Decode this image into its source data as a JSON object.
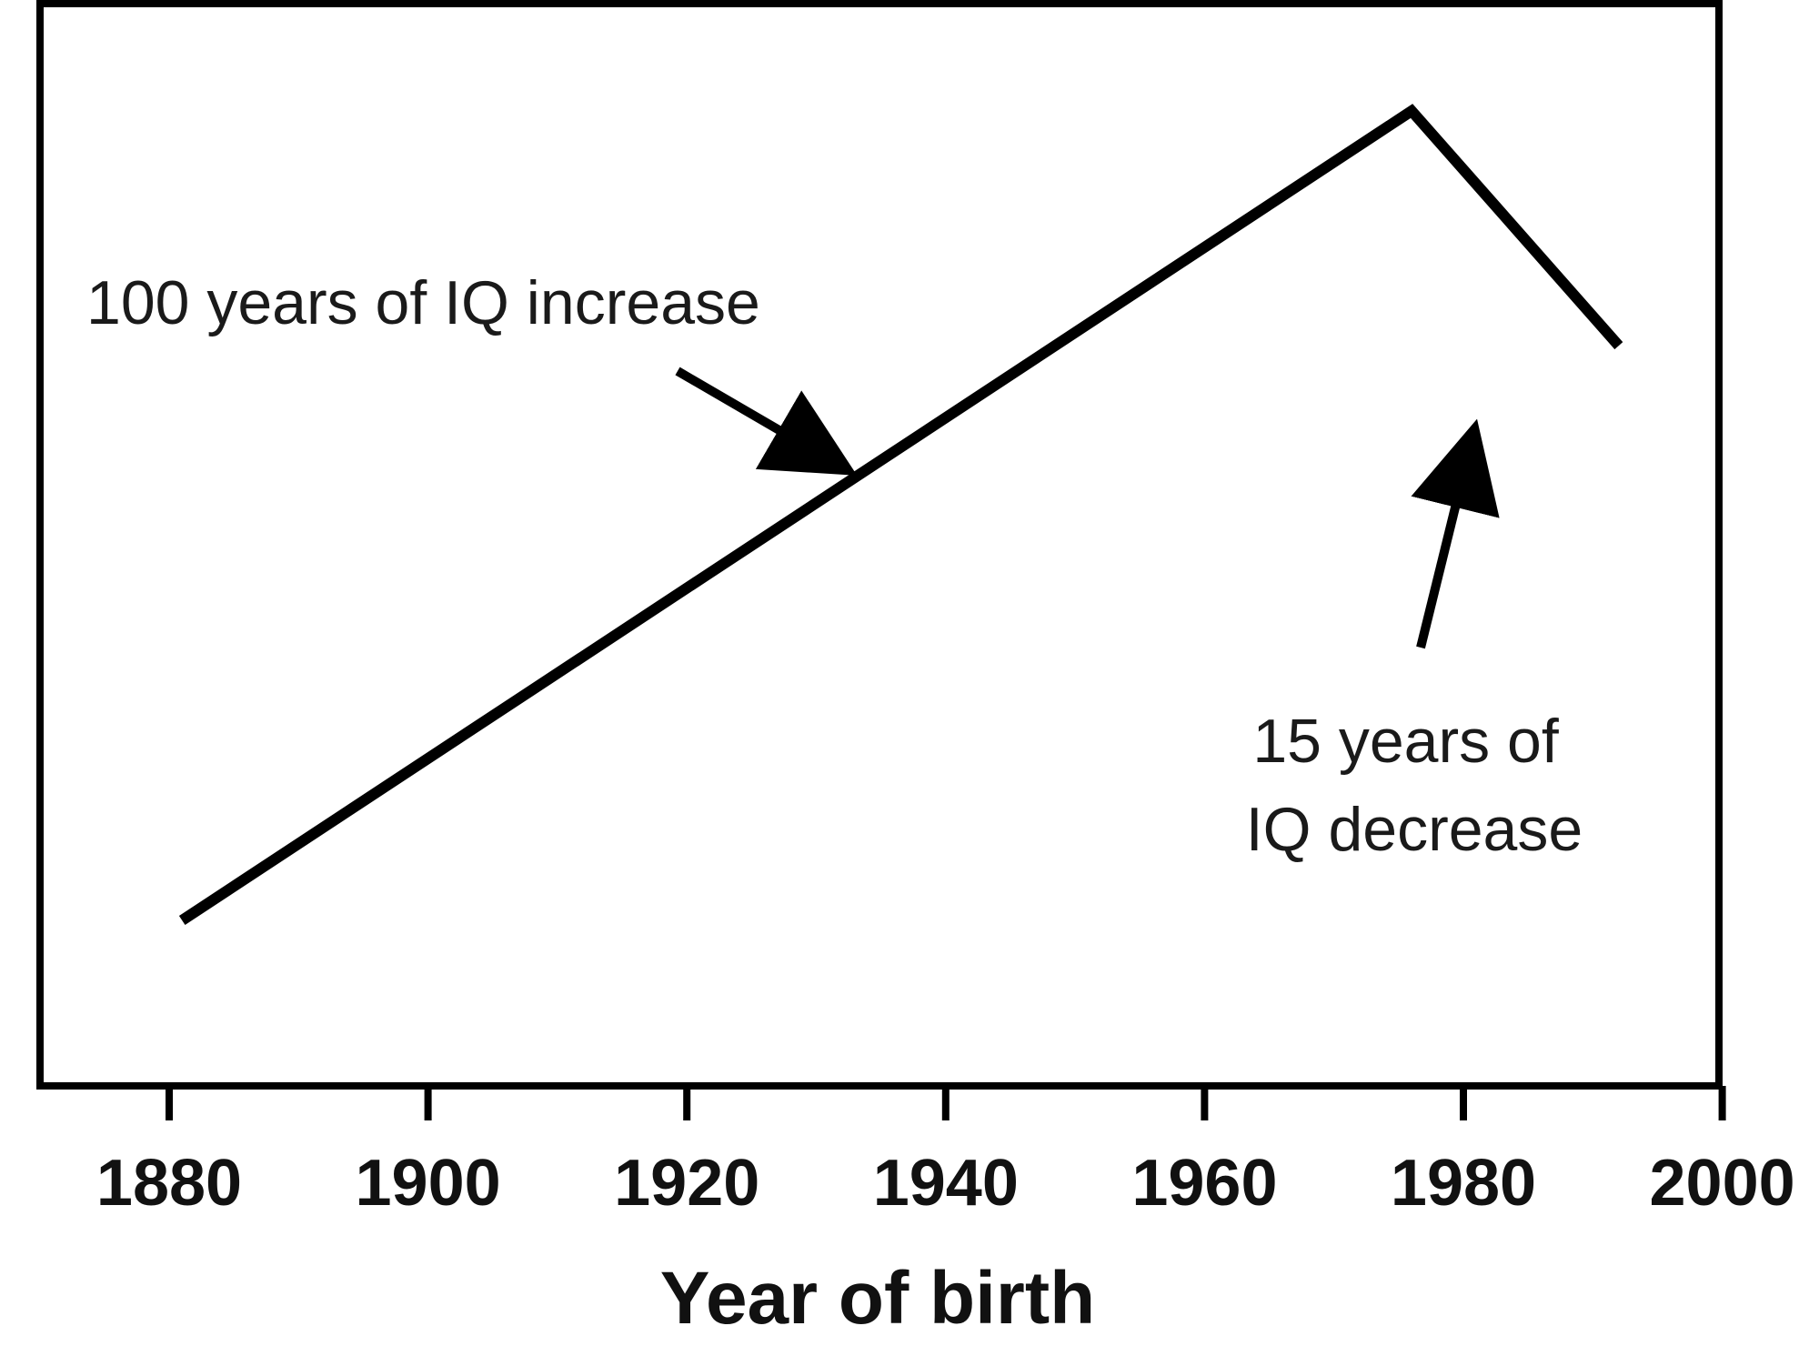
{
  "chart_data": {
    "type": "line",
    "xlabel": "Year of birth",
    "ylabel": "",
    "xlim": [
      1870,
      2000
    ],
    "x_ticks": [
      1880,
      1900,
      1920,
      1940,
      1960,
      1980,
      2000
    ],
    "grid": false,
    "series": [
      {
        "x": [
          1881,
          1976,
          1992
        ],
        "y": [
          0,
          1.0,
          0.71
        ]
      }
    ],
    "annotations": {
      "increase": {
        "text": "100 years of IQ increase",
        "points_to_year": 1933
      },
      "decrease": {
        "lines": [
          "15 years of",
          "IQ decrease"
        ],
        "points_to_year": 1981
      }
    },
    "colors": {
      "line": "#000000",
      "text": "#111111"
    }
  }
}
